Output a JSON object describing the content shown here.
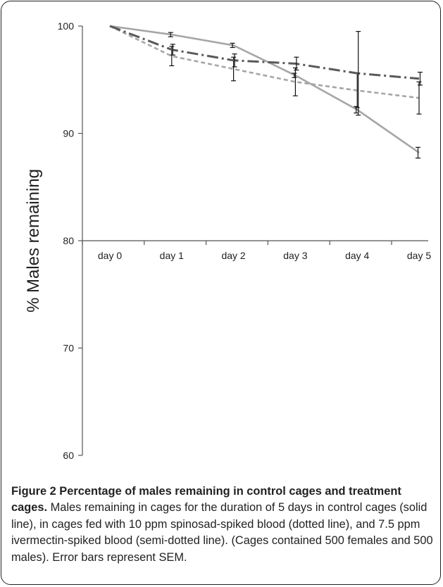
{
  "chart_data": {
    "type": "line",
    "ylabel": "% Males remaining",
    "ylim": [
      60,
      100
    ],
    "yticks": [
      100,
      90,
      80,
      70,
      60
    ],
    "categories": [
      "day 0",
      "day 1",
      "day 2",
      "day 3",
      "day 4",
      "day 5"
    ],
    "grid": false,
    "legend": "none",
    "series": [
      {
        "style": "solid",
        "color": "#a6a6a6",
        "values": [
          100,
          99.2,
          98.2,
          95.4,
          92.2,
          88.2
        ],
        "err": [
          0,
          0.2,
          0.2,
          0.2,
          0.3,
          0.5
        ]
      },
      {
        "style": "dotted",
        "color": "#a6a6a6",
        "values": [
          100,
          97.2,
          96.0,
          94.8,
          94.0,
          93.3
        ],
        "err": [
          0,
          0.9,
          1.1,
          1.3,
          1.6,
          1.5
        ]
      },
      {
        "style": "semi-dotted",
        "color": "#595959",
        "values": [
          100,
          97.8,
          96.8,
          96.5,
          95.6,
          95.1
        ],
        "err": [
          0,
          0.5,
          0.6,
          0.6,
          3.9,
          0.6
        ]
      }
    ]
  },
  "caption": {
    "label": "Figure 2 Percentage of males remaining in control cages and treatment cages.",
    "text": " Males remaining in cages for the duration of 5 days in control cages (solid line), in cages fed with 10 ppm spinosad-spiked blood (dotted line), and 7.5 ppm ivermectin-spiked blood (semi-dotted line). (Cages contained 500 females and 500 males). Error bars represent SEM."
  }
}
